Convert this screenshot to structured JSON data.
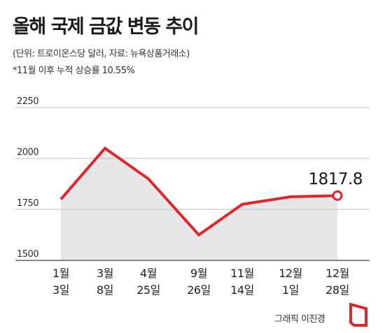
{
  "chart_data": {
    "type": "line",
    "title": "올해 국제 금값 변동 추이",
    "subtitle": "(단위: 트로이온스당 달러, 자료: 뉴욕상품거래소)",
    "note": "*11월 이후 누적 상승률 10.55%",
    "categories": [
      {
        "line1": "1월",
        "line2": "3일"
      },
      {
        "line1": "3월",
        "line2": "8일"
      },
      {
        "line1": "4월",
        "line2": "25일"
      },
      {
        "line1": "9월",
        "line2": "26일"
      },
      {
        "line1": "11월",
        "line2": "14일"
      },
      {
        "line1": "12월",
        "line2": "1일"
      },
      {
        "line1": "12월",
        "line2": "28일"
      }
    ],
    "values": [
      1800,
      2050,
      1900,
      1625,
      1775,
      1812,
      1817.8
    ],
    "last_label": "1817.8",
    "yticks": [
      {
        "value": 2250,
        "label": "2250"
      },
      {
        "value": 2000,
        "label": "2000"
      },
      {
        "value": 1750,
        "label": "1750"
      },
      {
        "value": 1500,
        "label": "1500"
      }
    ],
    "ylim": [
      1500,
      2250
    ],
    "grid": true,
    "colors": {
      "line": "#e0262c",
      "area": "#e7e7e9",
      "grid": "#bdbdbd",
      "axis": "#444444"
    }
  },
  "credit": "그래픽 이진경",
  "logo_icon": "red-bracket-logo-icon"
}
